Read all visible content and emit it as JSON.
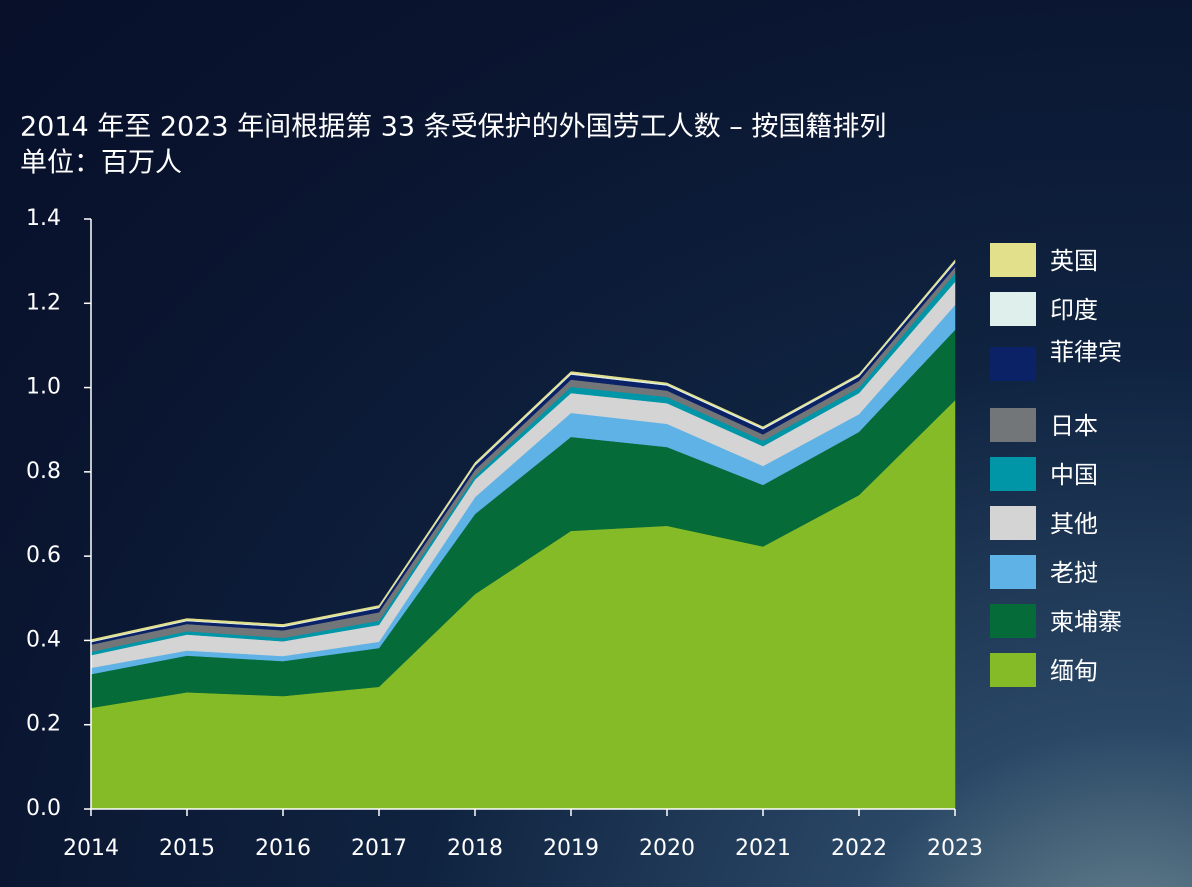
{
  "chart_data": {
    "type": "stacked_area",
    "title": "2014 年至 2023 年间根据第 33 条受保护的外国劳工人数 – 按国籍排列",
    "subtitle": "单位：百万人",
    "categories": [
      "2014",
      "2015",
      "2016",
      "2017",
      "2018",
      "2019",
      "2020",
      "2021",
      "2022",
      "2023"
    ],
    "series": [
      {
        "name": "缅甸",
        "color": "#86bb28",
        "values": [
          0.24,
          0.277,
          0.268,
          0.29,
          0.51,
          0.66,
          0.672,
          0.623,
          0.745,
          0.97
        ]
      },
      {
        "name": "柬埔寨",
        "color": "#056b38",
        "values": [
          0.08,
          0.087,
          0.083,
          0.092,
          0.19,
          0.223,
          0.187,
          0.146,
          0.15,
          0.167
        ]
      },
      {
        "name": "老挝",
        "color": "#5fb2e6",
        "values": [
          0.015,
          0.012,
          0.012,
          0.015,
          0.04,
          0.057,
          0.055,
          0.045,
          0.042,
          0.059
        ]
      },
      {
        "name": "其他",
        "color": "#d4d4d4",
        "values": [
          0.03,
          0.038,
          0.035,
          0.04,
          0.042,
          0.047,
          0.049,
          0.047,
          0.05,
          0.055
        ]
      },
      {
        "name": "中国",
        "color": "#0096a8",
        "values": [
          0.008,
          0.008,
          0.008,
          0.01,
          0.008,
          0.015,
          0.015,
          0.013,
          0.013,
          0.02
        ]
      },
      {
        "name": "日本",
        "color": "#737678",
        "values": [
          0.017,
          0.017,
          0.018,
          0.02,
          0.015,
          0.017,
          0.015,
          0.015,
          0.016,
          0.015
        ]
      },
      {
        "name": "菲律宾",
        "color": "#0b2266",
        "values": [
          0.006,
          0.007,
          0.008,
          0.01,
          0.01,
          0.012,
          0.012,
          0.012,
          0.01,
          0.01
        ]
      },
      {
        "name": "印度",
        "color": "#dff0ec",
        "values": [
          0.002,
          0.002,
          0.002,
          0.002,
          0.003,
          0.003,
          0.003,
          0.003,
          0.003,
          0.003
        ]
      },
      {
        "name": "英国",
        "color": "#e3e08c",
        "values": [
          0.004,
          0.004,
          0.004,
          0.004,
          0.004,
          0.004,
          0.003,
          0.003,
          0.003,
          0.004
        ]
      }
    ],
    "ylim": [
      0,
      1.4
    ],
    "yticks": [
      {
        "value": 0,
        "label": "0.0"
      },
      0.2,
      0.4,
      0.6,
      0.8,
      {
        "value": 1,
        "label": "1.0"
      },
      1.2,
      1.4
    ],
    "legend": "right"
  }
}
